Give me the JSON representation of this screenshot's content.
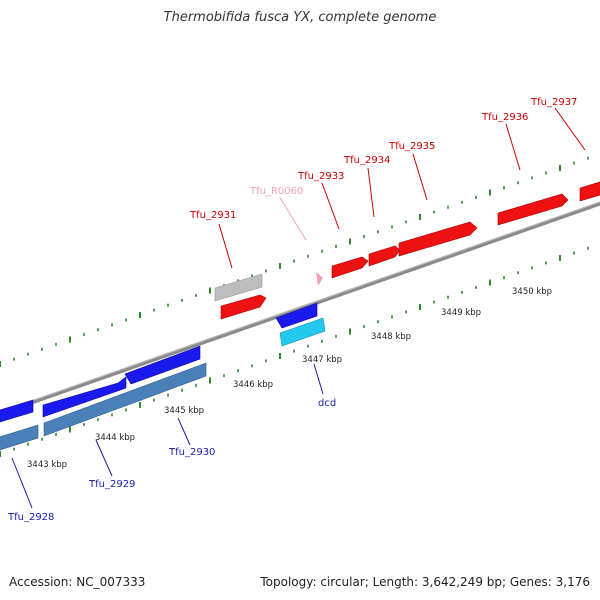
{
  "title": "Thermobifida fusca YX, complete genome",
  "footer": {
    "accession": "Accession: NC_007333",
    "summary": "Topology: circular; Length: 3,642,249 bp; Genes: 3,176"
  },
  "colors": {
    "forward_gene": "#ee1111",
    "forward_label": "#cc0000",
    "reverse_gene": "#1a1aee",
    "reverse_label": "#1a1aaa",
    "reverse_secondary": "#4a7fb8",
    "rna_label": "#f2a0c0",
    "pseudo_gene": "#bdbdbd",
    "cyan_gene": "#22c8ee",
    "backbone": "#8a8a8a",
    "tick": "#2e8a2e"
  },
  "genes": {
    "forward": [
      {
        "id": "Tfu_2931",
        "label": "Tfu_2931"
      },
      {
        "id": "Tfu_R0060",
        "label": "Tfu_R0060"
      },
      {
        "id": "Tfu_2933",
        "label": "Tfu_2933"
      },
      {
        "id": "Tfu_2934",
        "label": "Tfu_2934"
      },
      {
        "id": "Tfu_2935",
        "label": "Tfu_2935"
      },
      {
        "id": "Tfu_2936",
        "label": "Tfu_2936"
      },
      {
        "id": "Tfu_2937",
        "label": "Tfu_2937"
      }
    ],
    "reverse": [
      {
        "id": "Tfu_2928",
        "label": "Tfu_2928"
      },
      {
        "id": "Tfu_2929",
        "label": "Tfu_2929"
      },
      {
        "id": "Tfu_2930",
        "label": "Tfu_2930"
      },
      {
        "id": "dcd",
        "label": "dcd"
      }
    ]
  },
  "scale_labels": [
    "3443 kbp",
    "3444 kbp",
    "3445 kbp",
    "3446 kbp",
    "3447 kbp",
    "3448 kbp",
    "3449 kbp",
    "3450 kbp"
  ]
}
